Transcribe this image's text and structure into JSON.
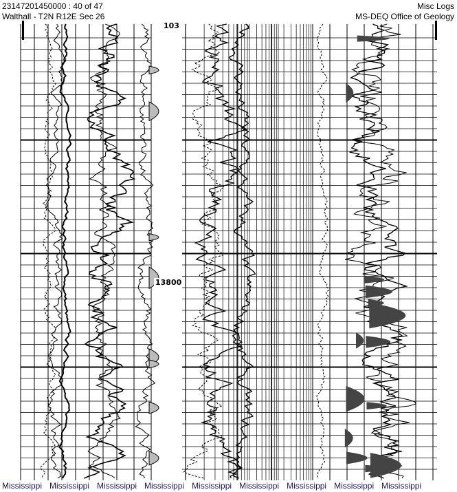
{
  "header": {
    "left_line1": "23147201450000 : 40 of 47",
    "left_line2": "Walthall - T2N R12E Sec 26",
    "right_line1": "Misc Logs",
    "right_line2": "MS-DEQ Office of Geology"
  },
  "log": {
    "depth_labels": [
      "103",
      "13800"
    ]
  },
  "footer": {
    "watermark": [
      "Mississippi",
      "Mississippi",
      "Mississippi",
      "Mississippi",
      "Mississippi",
      "Mississippi",
      "Mississippi",
      "Mississippi",
      "Mississippi"
    ]
  }
}
